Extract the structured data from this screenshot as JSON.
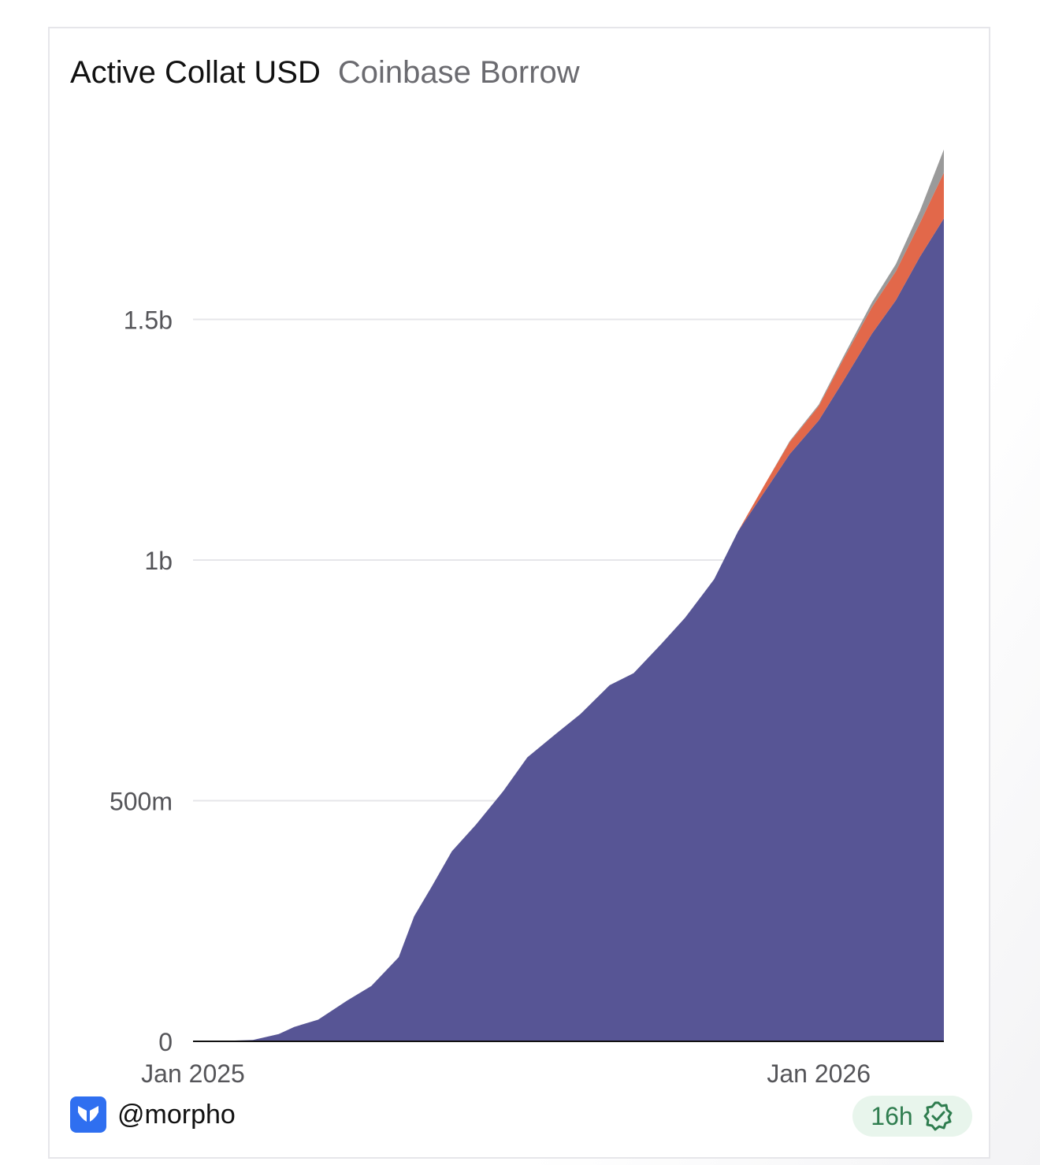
{
  "header": {
    "title": "Active Collat USD",
    "subtitle": "Coinbase Borrow"
  },
  "footer": {
    "handle": "@morpho",
    "badge_text": "16h",
    "logo_icon": "morpho-butterfly-icon",
    "badge_icon": "verified-check-icon"
  },
  "colors": {
    "series_primary": "#575595",
    "series_secondary": "#e2684a",
    "series_tertiary": "#9a9a9a",
    "grid": "#e6e6ea",
    "badge_bg": "#e8f5ec",
    "badge_fg": "#2f7d4f",
    "logo_bg": "#2f6ff0"
  },
  "chart_data": {
    "type": "area",
    "stacked": true,
    "title": "Active Collat USD",
    "subtitle": "Coinbase Borrow",
    "y_ticks": [
      {
        "value": 0,
        "label": "0"
      },
      {
        "value": 500000000,
        "label": "500m"
      },
      {
        "value": 1000000000,
        "label": "1b"
      },
      {
        "value": 1500000000,
        "label": "1.5b"
      }
    ],
    "x_ticks": [
      {
        "value": "2025-01-01",
        "label": "Jan 2025"
      },
      {
        "value": "2026-01-01",
        "label": "Jan 2026"
      }
    ],
    "xlim": [
      "2025-01-01",
      "2026-03-15"
    ],
    "ylim": [
      0,
      1900000000
    ],
    "grid": true,
    "legend": "none",
    "x": [
      "2025-01-01",
      "2025-01-20",
      "2025-02-05",
      "2025-02-20",
      "2025-03-01",
      "2025-03-15",
      "2025-04-01",
      "2025-04-15",
      "2025-05-01",
      "2025-05-10",
      "2025-05-20",
      "2025-06-01",
      "2025-06-15",
      "2025-07-01",
      "2025-07-15",
      "2025-08-01",
      "2025-08-15",
      "2025-09-01",
      "2025-09-15",
      "2025-10-01",
      "2025-10-15",
      "2025-11-01",
      "2025-11-15",
      "2025-12-01",
      "2025-12-15",
      "2026-01-01",
      "2026-01-15",
      "2026-02-01",
      "2026-02-15",
      "2026-03-01",
      "2026-03-15"
    ],
    "series": [
      {
        "values": [
          0,
          1000000,
          3000000,
          15000000,
          30000000,
          45000000,
          85000000,
          115000000,
          175000000,
          260000000,
          320000000,
          395000000,
          450000000,
          520000000,
          590000000,
          640000000,
          680000000,
          740000000,
          765000000,
          825000000,
          880000000,
          960000000,
          1060000000,
          1145000000,
          1220000000,
          1290000000,
          1370000000,
          1470000000,
          1540000000,
          1630000000,
          1710000000
        ]
      },
      {
        "values": [
          0,
          0,
          0,
          0,
          0,
          0,
          0,
          0,
          0,
          0,
          0,
          0,
          0,
          0,
          0,
          0,
          0,
          0,
          0,
          0,
          0,
          0,
          0,
          15000000,
          25000000,
          30000000,
          45000000,
          55000000,
          60000000,
          70000000,
          95000000
        ]
      },
      {
        "values": [
          0,
          0,
          0,
          0,
          0,
          0,
          0,
          0,
          0,
          0,
          0,
          0,
          0,
          0,
          0,
          0,
          0,
          0,
          0,
          0,
          0,
          0,
          0,
          0,
          2000000,
          3000000,
          5000000,
          10000000,
          15000000,
          25000000,
          48000000
        ]
      }
    ]
  }
}
